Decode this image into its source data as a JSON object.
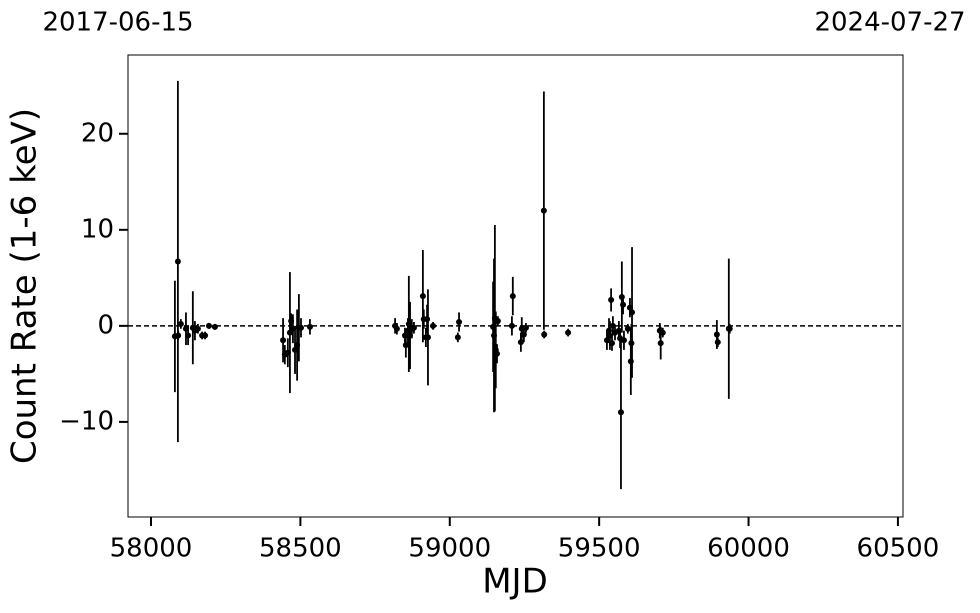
{
  "chart_data": {
    "type": "errorbar",
    "top_labels": [
      "2017-06-15",
      "2024-07-27"
    ],
    "x_label": "MJD",
    "y_label": "Count Rate (1-6 keV)",
    "color": "#000000",
    "hline": 0,
    "xlim": [
      57923,
      60517
    ],
    "ylim": [
      -19.9,
      28.2
    ],
    "xticks": [
      58000,
      58500,
      59000,
      59500,
      60000,
      60500
    ],
    "yticks": [
      {
        "value": -10,
        "label": "−10"
      },
      0,
      10,
      20
    ],
    "x": [
      58080,
      58090,
      58091,
      58100,
      58117,
      58124,
      58140,
      58147,
      58157,
      58171,
      58181,
      58194,
      58214,
      58442,
      58448,
      58458,
      58465,
      58469,
      58475,
      58482,
      58489,
      58495,
      58502,
      58532,
      58817,
      58823,
      58850,
      58853,
      58860,
      58863,
      58867,
      58873,
      58880,
      58910,
      58913,
      58920,
      58924,
      58927,
      58944,
      59027,
      59031,
      59145,
      59148,
      59151,
      59154,
      59158,
      59161,
      59208,
      59211,
      59238,
      59241,
      59248,
      59255,
      59315,
      59316,
      59396,
      59526,
      59533,
      59536,
      59540,
      59543,
      59546,
      59553,
      59566,
      59570,
      59573,
      59576,
      59580,
      59583,
      59596,
      59603,
      59606,
      59610,
      59608,
      59703,
      59706,
      59713,
      59894,
      59897,
      59934,
      59937
    ],
    "values": [
      -1.1,
      6.7,
      -1.0,
      0.2,
      -0.3,
      -1.0,
      -0.2,
      -0.5,
      -0.3,
      -1.0,
      -1.0,
      0.0,
      -0.1,
      -1.5,
      -3.0,
      -2.8,
      -0.7,
      0.5,
      -0.3,
      -2.5,
      -2.0,
      -0.2,
      -0.2,
      -0.1,
      0.0,
      -0.3,
      -1.0,
      -2.0,
      -0.5,
      0.2,
      -1.0,
      -0.3,
      -0.2,
      3.1,
      0.7,
      -1.2,
      0.7,
      -1.2,
      0.0,
      -1.2,
      0.4,
      -0.1,
      -1.0,
      0.8,
      -2.5,
      -2.9,
      0.5,
      0.0,
      3.1,
      -1.7,
      -0.3,
      -0.9,
      -0.2,
      12.0,
      -0.9,
      -0.7,
      -1.5,
      -0.5,
      -1.0,
      2.7,
      -1.8,
      0.0,
      -0.7,
      -0.5,
      -1.3,
      -9.0,
      3.0,
      2.2,
      -1.5,
      -0.3,
      1.9,
      -3.7,
      1.4,
      -1.8,
      -0.5,
      -1.8,
      -0.7,
      -0.9,
      -1.7,
      -0.3,
      -0.3
    ],
    "errors": [
      5.8,
      18.8,
      0.5,
      0.5,
      1.7,
      1.0,
      3.8,
      1.0,
      0.5,
      0.4,
      0.4,
      0.3,
      0.3,
      2.3,
      1.0,
      1.5,
      6.3,
      0.8,
      1.5,
      2.5,
      3.7,
      3.5,
      1.0,
      0.8,
      0.8,
      0.6,
      0.8,
      1.3,
      1.3,
      5.0,
      3.5,
      1.0,
      0.6,
      4.8,
      1.0,
      1.0,
      1.5,
      5.0,
      0.4,
      0.5,
      1.0,
      4.7,
      8.0,
      9.7,
      4.0,
      1.0,
      0.5,
      1.0,
      2.0,
      1.0,
      1.2,
      0.8,
      0.5,
      12.4,
      0.4,
      0.4,
      1.0,
      1.3,
      1.5,
      1.2,
      0.8,
      1.0,
      0.8,
      1.0,
      1.0,
      8.0,
      3.7,
      1.0,
      1.0,
      0.5,
      1.0,
      3.5,
      6.8,
      2.0,
      0.8,
      1.7,
      0.5,
      1.5,
      0.5,
      7.3,
      0.5
    ]
  }
}
